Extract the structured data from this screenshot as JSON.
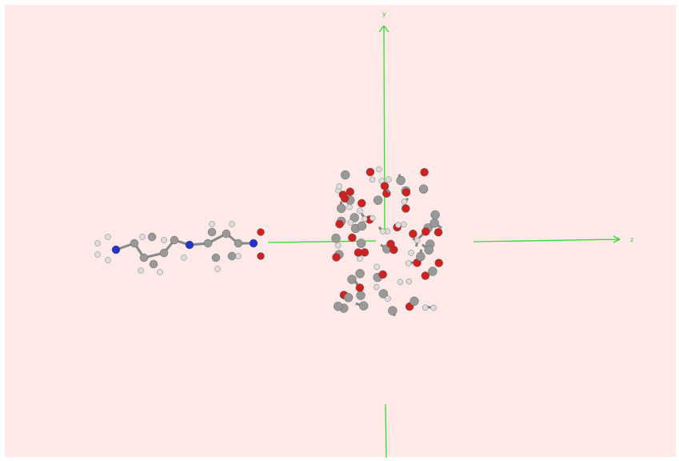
{
  "axes": {
    "y_label": "y",
    "z_label": "z"
  }
}
